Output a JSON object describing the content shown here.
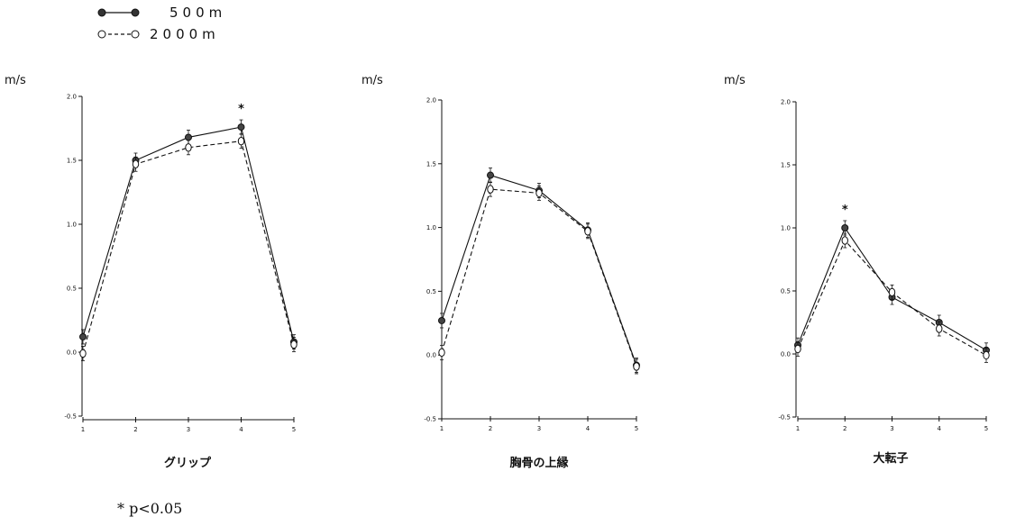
{
  "legend": [
    {
      "label": "500m",
      "style": "solid-filled"
    },
    {
      "label": "2000m",
      "style": "dashed-open"
    }
  ],
  "footnote": "*  p<0.05",
  "chart_data": [
    {
      "type": "line",
      "title": "グリップ",
      "ylabel": "m/s",
      "ylim": [
        -0.5,
        2.0
      ],
      "yticks": [
        "2.0",
        "1.5",
        "1.0",
        "0.5",
        "0.0",
        "-0.5"
      ],
      "x": [
        1,
        2,
        3,
        4,
        5
      ],
      "xticks": [
        "1",
        "2",
        "3",
        "4",
        "5"
      ],
      "series": [
        {
          "name": "500m",
          "values": [
            0.12,
            1.5,
            1.68,
            1.76,
            0.08
          ]
        },
        {
          "name": "2000m",
          "values": [
            -0.01,
            1.47,
            1.6,
            1.65,
            0.06
          ]
        }
      ],
      "significant_x": [
        4
      ]
    },
    {
      "type": "line",
      "title": "胸骨の上縁",
      "ylabel": "m/s",
      "ylim": [
        -0.5,
        2.0
      ],
      "yticks": [
        "2.0",
        "1.5",
        "1.0",
        "0.5",
        "0.0",
        "-0.5"
      ],
      "x": [
        1,
        2,
        3,
        4,
        5
      ],
      "xticks": [
        "1",
        "2",
        "3",
        "4",
        "5"
      ],
      "series": [
        {
          "name": "500m",
          "values": [
            0.27,
            1.41,
            1.29,
            0.98,
            -0.08
          ]
        },
        {
          "name": "2000m",
          "values": [
            0.02,
            1.3,
            1.27,
            0.97,
            -0.09
          ]
        }
      ],
      "significant_x": []
    },
    {
      "type": "line",
      "title": "大転子",
      "ylabel": "m/s",
      "ylim": [
        -0.5,
        2.0
      ],
      "yticks": [
        "2.0",
        "1.5",
        "1.0",
        "0.5",
        "0.0",
        "-0.5"
      ],
      "x": [
        1,
        2,
        3,
        4,
        5
      ],
      "xticks": [
        "1",
        "2",
        "3",
        "4",
        "5"
      ],
      "series": [
        {
          "name": "500m",
          "values": [
            0.07,
            1.0,
            0.45,
            0.25,
            0.03
          ]
        },
        {
          "name": "2000m",
          "values": [
            0.04,
            0.9,
            0.49,
            0.2,
            -0.01
          ]
        }
      ],
      "significant_x": [
        2
      ]
    }
  ]
}
